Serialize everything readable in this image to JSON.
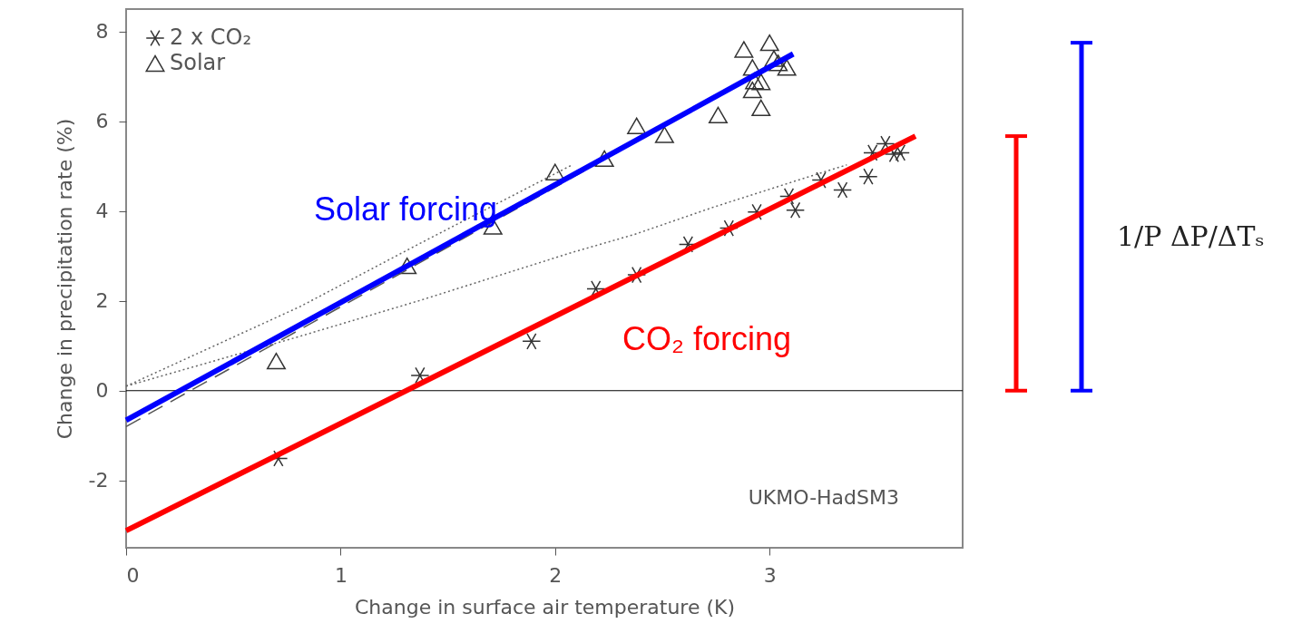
{
  "chart_data": {
    "type": "scatter",
    "xlabel": "Change in surface air temperature (K)",
    "ylabel": "Change in precipitation rate (%)",
    "xlim": [
      0,
      3.9
    ],
    "ylim": [
      -3.5,
      8.5
    ],
    "xticks": [
      0,
      1,
      2,
      3
    ],
    "yticks": [
      -2,
      0,
      2,
      4,
      6,
      8
    ],
    "legend": "top left",
    "series": [
      {
        "name": "2 x CO₂",
        "type": "scatter",
        "marker": "cross",
        "color": "#333333",
        "x": [
          0.71,
          1.37,
          1.89,
          2.19,
          2.38,
          2.62,
          2.81,
          2.94,
          3.09,
          3.12,
          3.24,
          3.34,
          3.46,
          3.48,
          3.54,
          3.58,
          3.61
        ],
        "values": [
          -1.51,
          0.34,
          1.1,
          2.27,
          2.58,
          3.26,
          3.62,
          3.98,
          4.33,
          4.02,
          4.69,
          4.47,
          4.77,
          5.3,
          5.5,
          5.27,
          5.3
        ]
      },
      {
        "name": "Solar",
        "type": "scatter",
        "marker": "triangle",
        "color": "#333333",
        "x": [
          0.7,
          1.31,
          1.71,
          2.0,
          2.23,
          2.38,
          2.51,
          2.76,
          2.88,
          3.0,
          2.92,
          3.04,
          3.08,
          2.93,
          2.96,
          2.92,
          2.96,
          3.02
        ],
        "values": [
          0.66,
          2.78,
          3.66,
          4.87,
          5.17,
          5.9,
          5.7,
          6.14,
          7.6,
          7.75,
          7.2,
          7.3,
          7.2,
          6.9,
          6.88,
          6.7,
          6.3,
          7.4
        ]
      },
      {
        "type": "line",
        "line_style": "dotted",
        "marker": "none",
        "color": "#666666",
        "x": [
          0,
          0.81,
          1.37,
          2.08
        ],
        "values": [
          0.1,
          1.87,
          3.28,
          5.03
        ]
      },
      {
        "type": "line",
        "line_style": "dotted",
        "marker": "none",
        "color": "#666666",
        "x": [
          0,
          0.81,
          1.37,
          2.08,
          2.37,
          2.74,
          3.12,
          3.36
        ],
        "values": [
          0.1,
          1.21,
          2.01,
          3.08,
          3.48,
          4.09,
          4.67,
          5.03
        ]
      },
      {
        "type": "line",
        "line_style": "dashed",
        "marker": "none",
        "color": "#555555",
        "x": [
          0,
          2.25
        ],
        "values": [
          -0.8,
          5.2
        ]
      },
      {
        "name": "Solar forcing",
        "type": "line",
        "line_style": "solid",
        "marker": "none",
        "color": "#0000ff",
        "x": [
          0,
          3.11
        ],
        "values": [
          -0.66,
          7.5
        ]
      },
      {
        "name": "CO₂ forcing",
        "type": "line",
        "line_style": "solid",
        "marker": "none",
        "color": "#ff0000",
        "x": [
          0,
          3.68
        ],
        "values": [
          -3.12,
          5.67
        ]
      }
    ],
    "ref_lines": [
      {
        "axis": "y",
        "value": 0,
        "color": "#000000"
      }
    ],
    "annotations": [
      "UKMO-HadSM3",
      "1/P ΔP/ΔTₛ"
    ]
  }
}
